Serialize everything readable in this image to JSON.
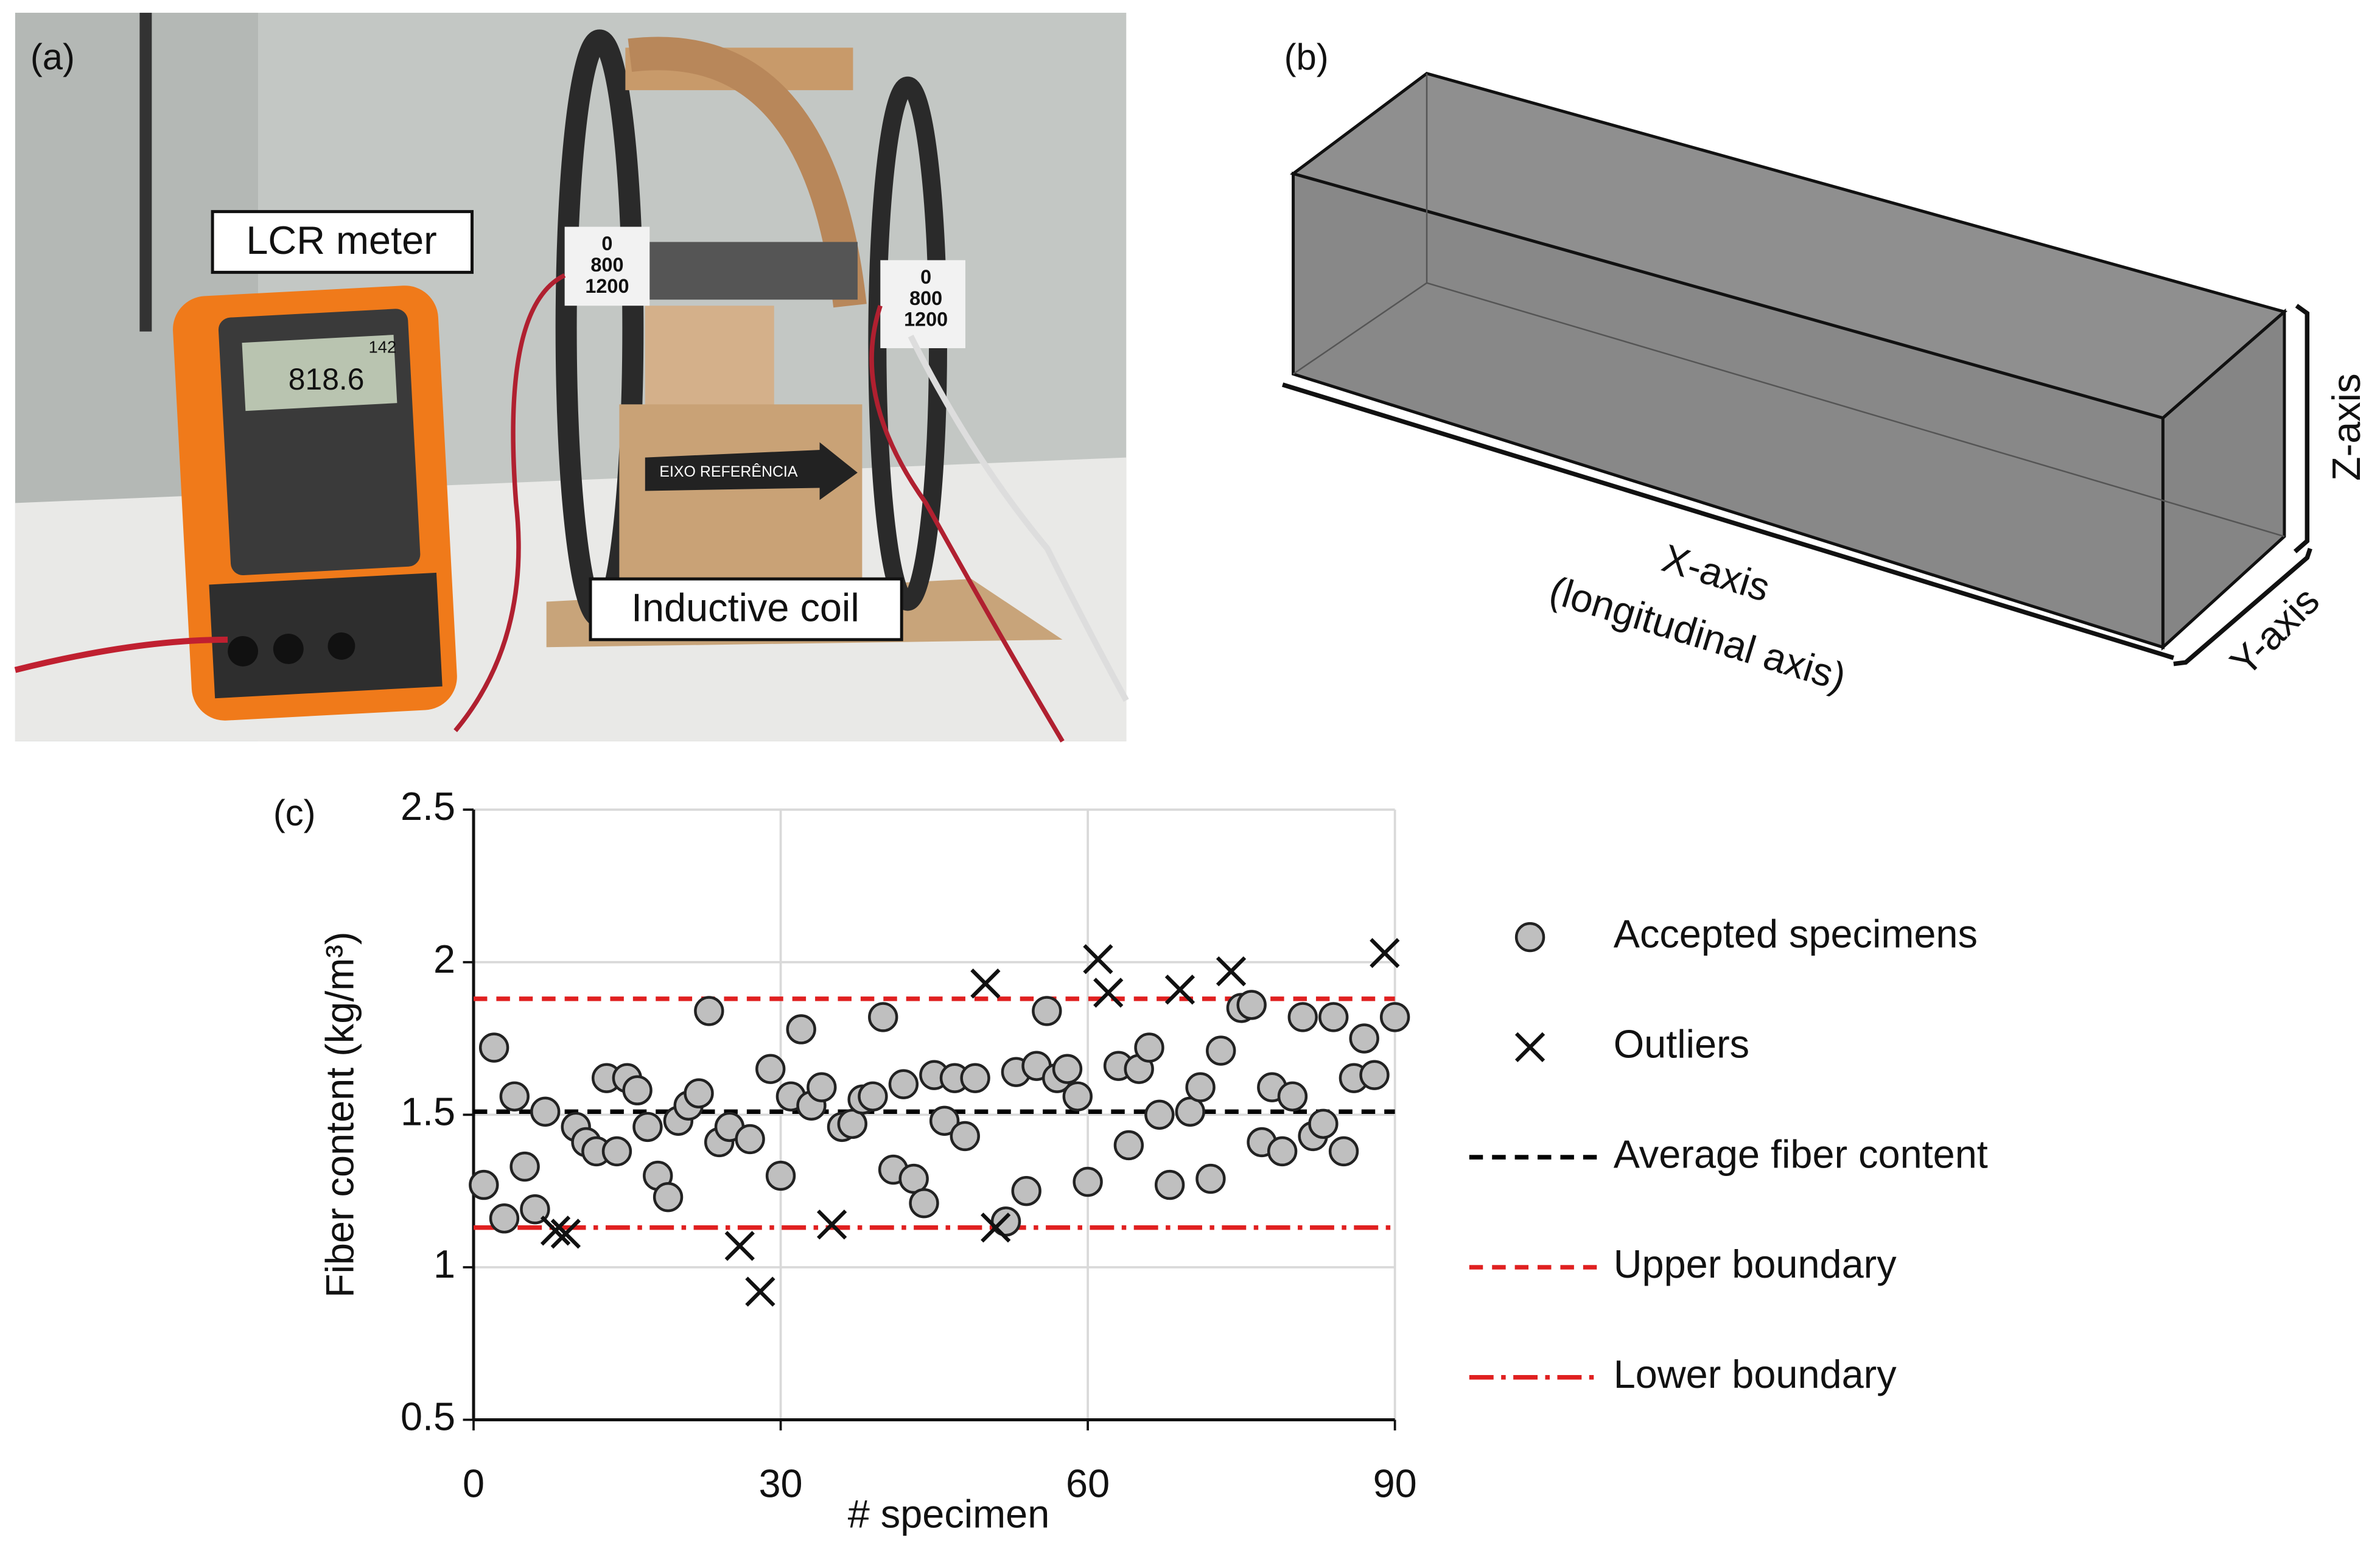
{
  "panel_a": {
    "label": "(a)",
    "meter_label": "LCR meter",
    "coil_label": "Inductive coil",
    "meter_reading": "818.6",
    "meter_small": "142",
    "reference_text": "EIXO REFERÊNCIA",
    "taps": [
      "0",
      "800",
      "1200"
    ]
  },
  "panel_b": {
    "label": "(b)",
    "x_axis": "X-axis",
    "x_axis_note": "(longitudinal axis)",
    "y_axis": "Y-axis",
    "z_axis": "Z-axis"
  },
  "chart_data": {
    "type": "scatter",
    "panel_label": "(c)",
    "x_label": "# specimen",
    "y_label": "Fiber content (kg/m³)",
    "xlim": [
      0,
      90
    ],
    "xticks": [
      0,
      30,
      60,
      90
    ],
    "ylim": [
      0.5,
      2.5
    ],
    "yticks": [
      0.5,
      1,
      1.5,
      2,
      2.5
    ],
    "grid": true,
    "series": [
      {
        "name": "Accepted specimens",
        "marker": "circle",
        "color": "#bfbfbf",
        "x": [
          1,
          2,
          3,
          4,
          5,
          6,
          7,
          10,
          11,
          12,
          13,
          14,
          15,
          16,
          17,
          18,
          19,
          20,
          21,
          22,
          23,
          24,
          25,
          27,
          29,
          30,
          31,
          32,
          33,
          34,
          36,
          37,
          38,
          39,
          40,
          41,
          42,
          43,
          44,
          45,
          46,
          47,
          48,
          49,
          52,
          53,
          54,
          55,
          56,
          57,
          58,
          59,
          60,
          63,
          64,
          65,
          66,
          67,
          68,
          70,
          71,
          72,
          73,
          75,
          76,
          77,
          78,
          79,
          80,
          81,
          82,
          83,
          84,
          85,
          86,
          87,
          88,
          90
        ],
        "values": [
          1.27,
          1.72,
          1.16,
          1.56,
          1.33,
          1.19,
          1.51,
          1.46,
          1.41,
          1.38,
          1.62,
          1.38,
          1.62,
          1.58,
          1.46,
          1.3,
          1.23,
          1.48,
          1.53,
          1.57,
          1.84,
          1.41,
          1.46,
          1.42,
          1.65,
          1.3,
          1.56,
          1.78,
          1.53,
          1.59,
          1.46,
          1.47,
          1.55,
          1.56,
          1.82,
          1.32,
          1.6,
          1.29,
          1.21,
          1.63,
          1.48,
          1.62,
          1.43,
          1.62,
          1.15,
          1.64,
          1.25,
          1.66,
          1.84,
          1.62,
          1.65,
          1.56,
          1.28,
          1.66,
          1.4,
          1.65,
          1.72,
          1.5,
          1.27,
          1.51,
          1.59,
          1.29,
          1.71,
          1.85,
          1.86,
          1.41,
          1.59,
          1.38,
          1.56,
          1.82,
          1.43,
          1.47,
          1.82,
          1.38,
          1.62,
          1.75,
          1.63,
          1.82
        ]
      },
      {
        "name": "Outliers",
        "marker": "x",
        "color": "#111111",
        "x": [
          8,
          9,
          26,
          28,
          35,
          50,
          51,
          61,
          62,
          69,
          74,
          89
        ],
        "values": [
          1.12,
          1.11,
          1.07,
          0.92,
          1.14,
          1.93,
          1.13,
          2.01,
          1.9,
          1.91,
          1.97,
          2.03
        ]
      }
    ],
    "reference_lines": [
      {
        "name": "Average fiber content",
        "color": "#000000",
        "dash": "dashed",
        "value": 1.51
      },
      {
        "name": "Upper boundary",
        "color": "#e02020",
        "dash": "dashed",
        "value": 1.88
      },
      {
        "name": "Lower boundary",
        "color": "#e02020",
        "dash": "dash-dot",
        "value": 1.13
      }
    ]
  }
}
